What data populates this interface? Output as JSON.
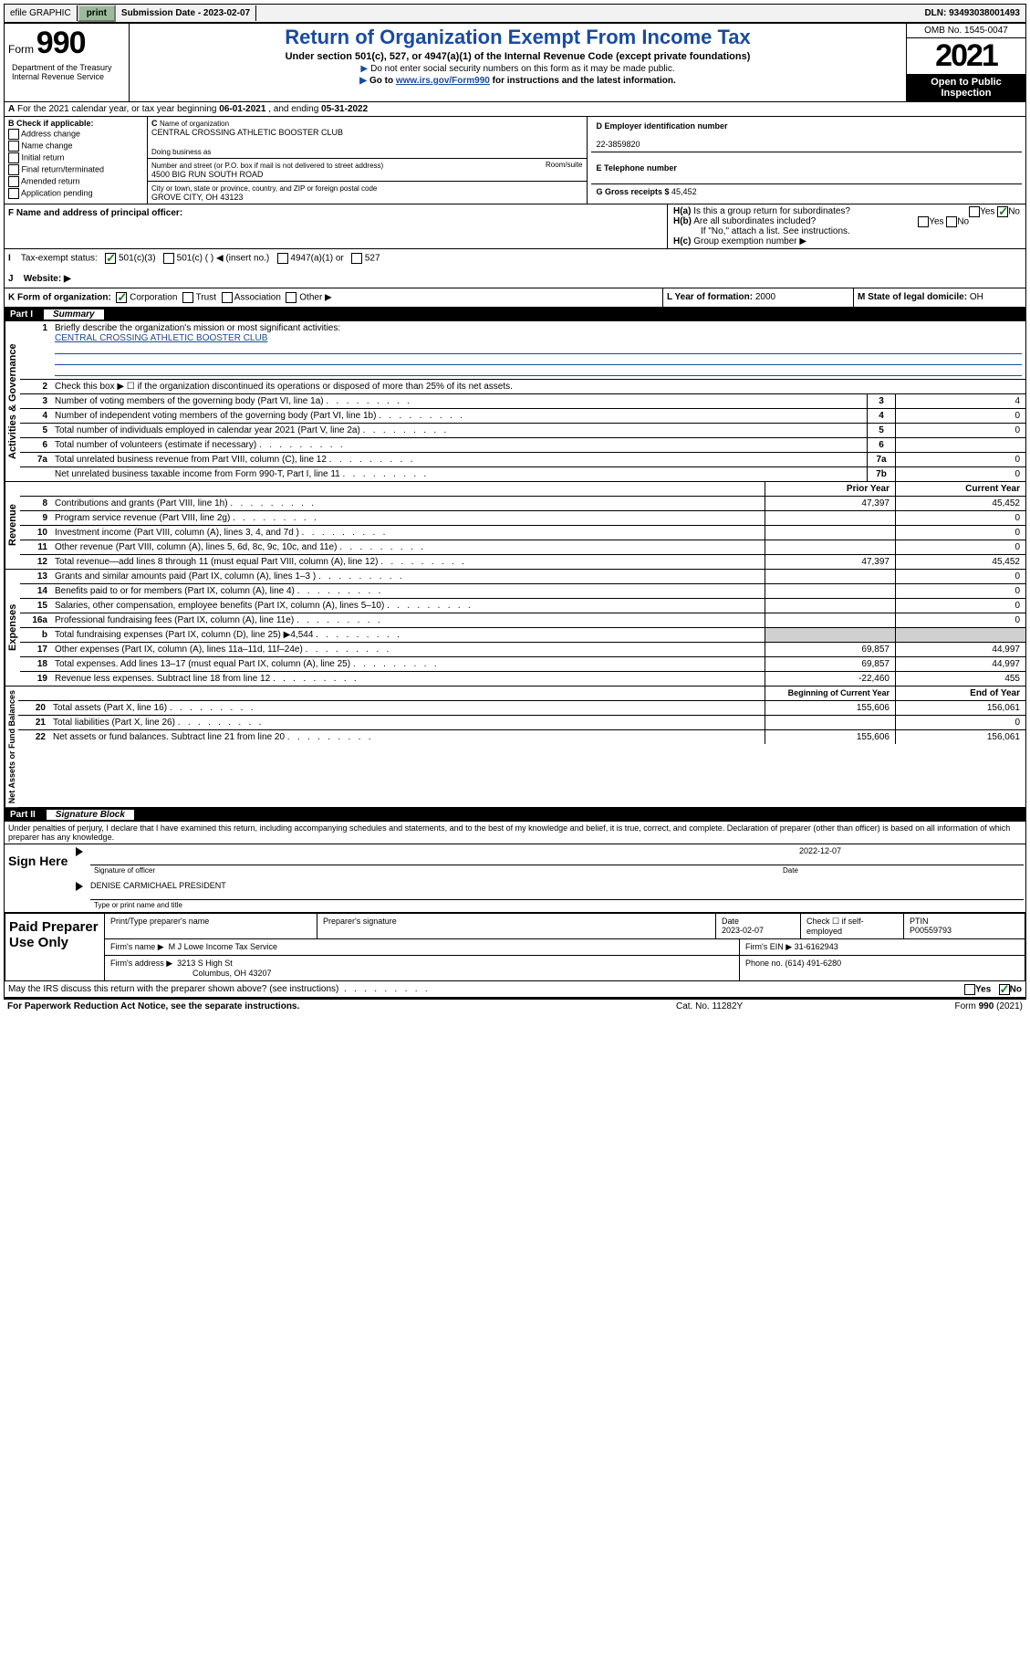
{
  "topbar": {
    "efile": "efile GRAPHIC",
    "print": "print",
    "subdate_lbl": "Submission Date - ",
    "subdate": "2023-02-07",
    "dln_lbl": "DLN: ",
    "dln": "93493038001493"
  },
  "header": {
    "form_word": "Form",
    "form_num": "990",
    "title": "Return of Organization Exempt From Income Tax",
    "subtitle": "Under section 501(c), 527, or 4947(a)(1) of the Internal Revenue Code (except private foundations)",
    "note1": "Do not enter social security numbers on this form as it may be made public.",
    "note2_pre": "Go to ",
    "note2_link": "www.irs.gov/Form990",
    "note2_post": " for instructions and the latest information.",
    "omb": "OMB No. 1545-0047",
    "year": "2021",
    "open": "Open to Public Inspection",
    "dept": "Department of the Treasury Internal Revenue Service"
  },
  "rowA": {
    "text_pre": "For the 2021 calendar year, or tax year beginning ",
    "begin": "06-01-2021",
    "mid": " , and ending ",
    "end": "05-31-2022"
  },
  "colB": {
    "heading": "B Check if applicable:",
    "opts": [
      "Address change",
      "Name change",
      "Initial return",
      "Final return/terminated",
      "Amended return",
      "Application pending"
    ]
  },
  "colC": {
    "name_lbl": "Name of organization",
    "name": "CENTRAL CROSSING ATHLETIC BOOSTER CLUB",
    "dba_lbl": "Doing business as",
    "addr_lbl": "Number and street (or P.O. box if mail is not delivered to street address)",
    "room_lbl": "Room/suite",
    "addr": "4500 BIG RUN SOUTH ROAD",
    "city_lbl": "City or town, state or province, country, and ZIP or foreign postal code",
    "city": "GROVE CITY, OH  43123"
  },
  "colD": {
    "ein_lbl": "D Employer identification number",
    "ein": "22-3859820",
    "tel_lbl": "E Telephone number",
    "gross_lbl": "G Gross receipts $ ",
    "gross": "45,452"
  },
  "rowF": {
    "f_lbl": "F  Name and address of principal officer:"
  },
  "rowH": {
    "ha": "Is this a group return for subordinates?",
    "hb": "Are all subordinates included?",
    "hb_note": "If \"No,\" attach a list. See instructions.",
    "hc": "Group exemption number ▶"
  },
  "rowI": {
    "lbl": "Tax-exempt status:",
    "o1": "501(c)(3)",
    "o2": "501(c) (  ) ◀ (insert no.)",
    "o3": "4947(a)(1) or",
    "o4": "527"
  },
  "rowJ": {
    "lbl": "Website: ▶"
  },
  "rowK": {
    "lbl": "K Form of organization:",
    "o1": "Corporation",
    "o2": "Trust",
    "o3": "Association",
    "o4": "Other ▶"
  },
  "rowL": {
    "lbl": "L Year of formation: ",
    "val": "2000"
  },
  "rowM": {
    "lbl": "M State of legal domicile: ",
    "val": "OH"
  },
  "part1": {
    "num": "Part I",
    "title": "Summary"
  },
  "summary": {
    "q1_lbl": "Briefly describe the organization's mission or most significant activities:",
    "q1_val": "CENTRAL CROSSING ATHLETIC BOOSTER CLUB",
    "q2": "Check this box ▶ ☐  if the organization discontinued its operations or disposed of more than 25% of its net assets.",
    "rows_gov": [
      {
        "n": "3",
        "d": "Number of voting members of the governing body (Part VI, line 1a)",
        "box": "3",
        "v": "4"
      },
      {
        "n": "4",
        "d": "Number of independent voting members of the governing body (Part VI, line 1b)",
        "box": "4",
        "v": "0"
      },
      {
        "n": "5",
        "d": "Total number of individuals employed in calendar year 2021 (Part V, line 2a)",
        "box": "5",
        "v": "0"
      },
      {
        "n": "6",
        "d": "Total number of volunteers (estimate if necessary)",
        "box": "6",
        "v": ""
      },
      {
        "n": "7a",
        "d": "Total unrelated business revenue from Part VIII, column (C), line 12",
        "box": "7a",
        "v": "0"
      },
      {
        "n": "",
        "d": "Net unrelated business taxable income from Form 990-T, Part I, line 11",
        "box": "7b",
        "v": "0"
      }
    ],
    "hdr_prior": "Prior Year",
    "hdr_curr": "Current Year",
    "rows_rev": [
      {
        "n": "8",
        "d": "Contributions and grants (Part VIII, line 1h)",
        "p": "47,397",
        "c": "45,452"
      },
      {
        "n": "9",
        "d": "Program service revenue (Part VIII, line 2g)",
        "p": "",
        "c": "0"
      },
      {
        "n": "10",
        "d": "Investment income (Part VIII, column (A), lines 3, 4, and 7d )",
        "p": "",
        "c": "0"
      },
      {
        "n": "11",
        "d": "Other revenue (Part VIII, column (A), lines 5, 6d, 8c, 9c, 10c, and 11e)",
        "p": "",
        "c": "0"
      },
      {
        "n": "12",
        "d": "Total revenue—add lines 8 through 11 (must equal Part VIII, column (A), line 12)",
        "p": "47,397",
        "c": "45,452"
      }
    ],
    "rows_exp": [
      {
        "n": "13",
        "d": "Grants and similar amounts paid (Part IX, column (A), lines 1–3 )",
        "p": "",
        "c": "0"
      },
      {
        "n": "14",
        "d": "Benefits paid to or for members (Part IX, column (A), line 4)",
        "p": "",
        "c": "0"
      },
      {
        "n": "15",
        "d": "Salaries, other compensation, employee benefits (Part IX, column (A), lines 5–10)",
        "p": "",
        "c": "0"
      },
      {
        "n": "16a",
        "d": "Professional fundraising fees (Part IX, column (A), line 11e)",
        "p": "",
        "c": "0"
      },
      {
        "n": "b",
        "d": "Total fundraising expenses (Part IX, column (D), line 25) ▶4,544",
        "p": "shade",
        "c": "shade"
      },
      {
        "n": "17",
        "d": "Other expenses (Part IX, column (A), lines 11a–11d, 11f–24e)",
        "p": "69,857",
        "c": "44,997"
      },
      {
        "n": "18",
        "d": "Total expenses. Add lines 13–17 (must equal Part IX, column (A), line 25)",
        "p": "69,857",
        "c": "44,997"
      },
      {
        "n": "19",
        "d": "Revenue less expenses. Subtract line 18 from line 12",
        "p": "-22,460",
        "c": "455"
      }
    ],
    "hdr_begin": "Beginning of Current Year",
    "hdr_end": "End of Year",
    "rows_net": [
      {
        "n": "20",
        "d": "Total assets (Part X, line 16)",
        "p": "155,606",
        "c": "156,061"
      },
      {
        "n": "21",
        "d": "Total liabilities (Part X, line 26)",
        "p": "",
        "c": "0"
      },
      {
        "n": "22",
        "d": "Net assets or fund balances. Subtract line 21 from line 20",
        "p": "155,606",
        "c": "156,061"
      }
    ],
    "vert_gov": "Activities & Governance",
    "vert_rev": "Revenue",
    "vert_exp": "Expenses",
    "vert_net": "Net Assets or Fund Balances"
  },
  "part2": {
    "num": "Part II",
    "title": "Signature Block"
  },
  "sig": {
    "decl": "Under penalties of perjury, I declare that I have examined this return, including accompanying schedules and statements, and to the best of my knowledge and belief, it is true, correct, and complete. Declaration of preparer (other than officer) is based on all information of which preparer has any knowledge.",
    "sign_here": "Sign Here",
    "sig_officer": "Signature of officer",
    "date_lbl": "Date",
    "date": "2022-12-07",
    "officer_name": "DENISE CARMICHAEL PRESIDENT",
    "type_name_lbl": "Type or print name and title"
  },
  "paid": {
    "label": "Paid Preparer Use Only",
    "h1": "Print/Type preparer's name",
    "h2": "Preparer's signature",
    "h3": "Date",
    "date": "2023-02-07",
    "h4": "Check ☐ if self-employed",
    "h5": "PTIN",
    "ptin": "P00559793",
    "firm_lbl": "Firm's name    ▶",
    "firm_name": "M J Lowe Income Tax Service",
    "firm_ein_lbl": "Firm's EIN ▶",
    "firm_ein": "31-6162943",
    "firm_addr_lbl": "Firm's address ▶",
    "firm_addr1": "3213 S High St",
    "firm_addr2": "Columbus, OH  43207",
    "phone_lbl": "Phone no. ",
    "phone": "(614) 491-6280"
  },
  "bottom": {
    "discuss": "May the IRS discuss this return with the preparer shown above? (see instructions)",
    "yes": "Yes",
    "no": "No",
    "paperwork": "For Paperwork Reduction Act Notice, see the separate instructions.",
    "cat": "Cat. No. 11282Y",
    "formrev": "Form 990 (2021)"
  }
}
